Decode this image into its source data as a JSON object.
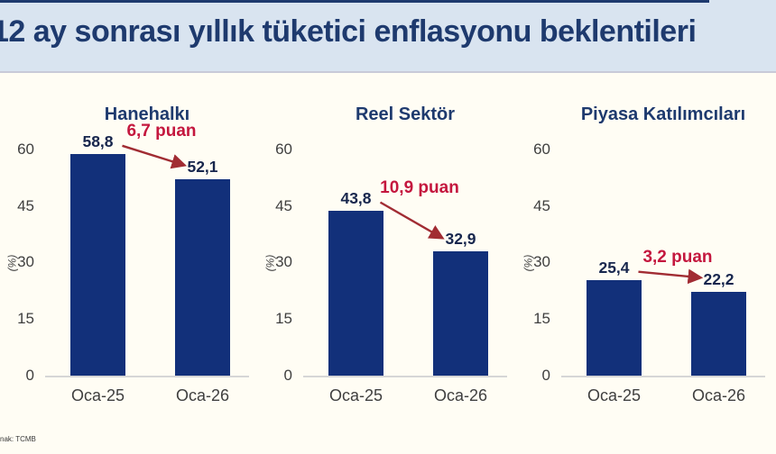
{
  "header": {
    "title": "12 ay sonrası yıllık tüketici enflasyonu beklentileri"
  },
  "footer": {
    "source": "nak: TCMB"
  },
  "colors": {
    "bar": "#12307a",
    "value_label": "#17264d",
    "title": "#1e3a6e",
    "annotation_text": "#c4173e",
    "arrow": "#a12c33",
    "header_bg": "#d9e4f0",
    "body_bg": "#fffdf4",
    "axis_line": "#d6d6d6",
    "tick_text": "#3f3f3f"
  },
  "chart_data": [
    {
      "type": "bar",
      "title": "Hanehalkı",
      "ylabel": "(%)",
      "ylim": [
        0,
        60
      ],
      "yticks": [
        0,
        15,
        30,
        45,
        60
      ],
      "grid": false,
      "categories": [
        "Oca-25",
        "Oca-26"
      ],
      "values": [
        58.8,
        52.1
      ],
      "value_labels": [
        "58,8",
        "52,1"
      ],
      "annotation": "6,7 puan"
    },
    {
      "type": "bar",
      "title": "Reel Sektör",
      "ylabel": "(%)",
      "ylim": [
        0,
        60
      ],
      "yticks": [
        0,
        15,
        30,
        45,
        60
      ],
      "grid": false,
      "categories": [
        "Oca-25",
        "Oca-26"
      ],
      "values": [
        43.8,
        32.9
      ],
      "value_labels": [
        "43,8",
        "32,9"
      ],
      "annotation": "10,9 puan"
    },
    {
      "type": "bar",
      "title": "Piyasa Katılımcıları",
      "ylabel": "(%)",
      "ylim": [
        0,
        60
      ],
      "yticks": [
        0,
        15,
        30,
        45,
        60
      ],
      "grid": false,
      "categories": [
        "Oca-25",
        "Oca-26"
      ],
      "values": [
        25.4,
        22.2
      ],
      "value_labels": [
        "25,4",
        "22,2"
      ],
      "annotation": "3,2 puan"
    }
  ]
}
